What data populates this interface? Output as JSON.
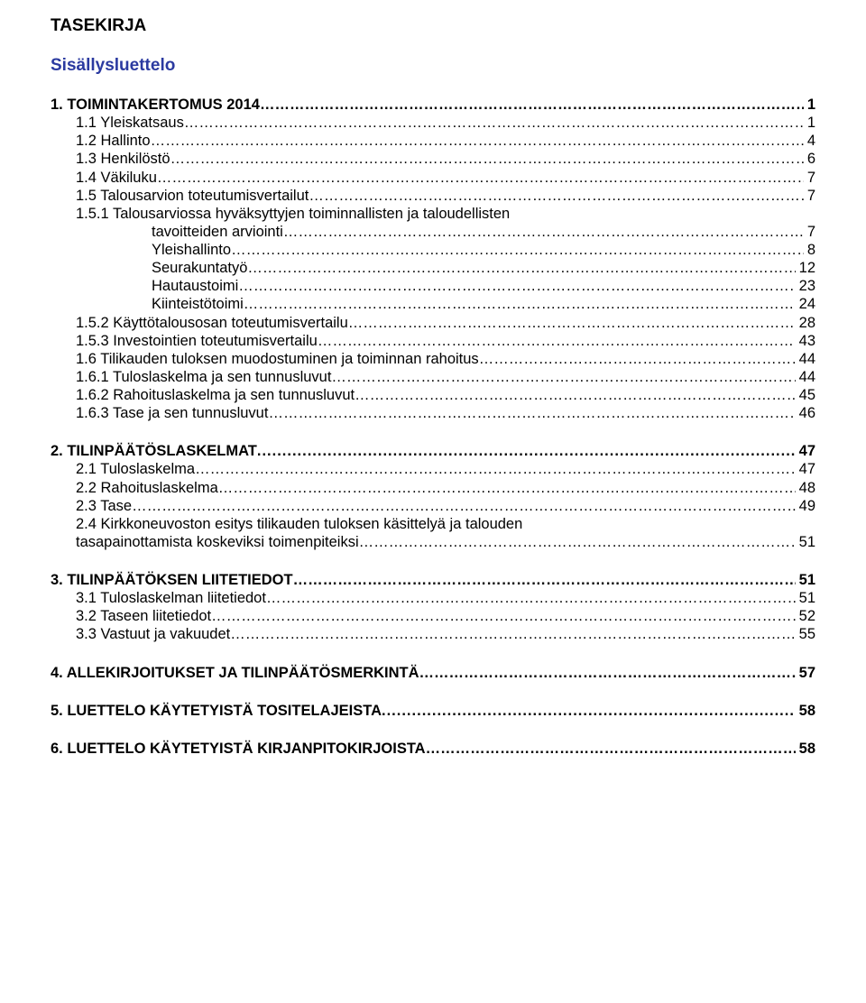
{
  "doc_title": "TASEKIRJA",
  "subtitle": "Sisällysluettelo",
  "sections": [
    {
      "rows": [
        {
          "label": "1.  TOIMINTAKERTOMUS 2014",
          "page": "1",
          "bold": true,
          "indent": 0,
          "leader": "ellipsis"
        },
        {
          "label": "1.1 Yleiskatsaus",
          "page": "1",
          "bold": false,
          "indent": 1,
          "leader": "ellipsis"
        },
        {
          "label": "1.2 Hallinto",
          "page": "4",
          "bold": false,
          "indent": 1,
          "leader": "ellipsis"
        },
        {
          "label": "1.3 Henkilöstö",
          "page": "6",
          "bold": false,
          "indent": 1,
          "leader": "ellipsis"
        },
        {
          "label": "1.4 Väkiluku",
          "page": "7",
          "bold": false,
          "indent": 1,
          "leader": "ellipsis"
        },
        {
          "label": "1.5 Talousarvion toteutumisvertailut",
          "page": "7",
          "bold": false,
          "indent": 1,
          "leader": "ellipsis"
        },
        {
          "label": "1.5.1 Talousarviossa hyväksyttyjen toiminnallisten ja taloudellisten",
          "page": "",
          "bold": false,
          "indent": 1,
          "leader": "none"
        },
        {
          "label": "tavoitteiden arviointi",
          "page": "7",
          "bold": false,
          "indent": 2,
          "leader": "ellipsis"
        },
        {
          "label": "Yleishallinto",
          "page": "8",
          "bold": false,
          "indent": 2,
          "leader": "ellipsis"
        },
        {
          "label": "Seurakuntatyö",
          "page": "12",
          "bold": false,
          "indent": 2,
          "leader": "ellipsis"
        },
        {
          "label": "Hautaustoimi",
          "page": "23",
          "bold": false,
          "indent": 2,
          "leader": "ellipsis"
        },
        {
          "label": "Kiinteistötoimi",
          "page": "24",
          "bold": false,
          "indent": 2,
          "leader": "ellipsis"
        },
        {
          "label": "1.5.2 Käyttötalousosan toteutumisvertailu",
          "page": "28",
          "bold": false,
          "indent": 1,
          "leader": "ellipsis"
        },
        {
          "label": "1.5.3 Investointien toteutumisvertailu",
          "page": "43",
          "bold": false,
          "indent": 1,
          "leader": "ellipsis"
        },
        {
          "label": "1.6 Tilikauden tuloksen muodostuminen ja toiminnan rahoitus",
          "page": "44",
          "bold": false,
          "indent": 1,
          "leader": "ellipsis"
        },
        {
          "label": "1.6.1 Tuloslaskelma ja sen tunnusluvut",
          "page": "44",
          "bold": false,
          "indent": 1,
          "leader": "ellipsis"
        },
        {
          "label": "1.6.2 Rahoituslaskelma ja sen tunnusluvut",
          "page": "45",
          "bold": false,
          "indent": 1,
          "leader": "ellipsis"
        },
        {
          "label": "1.6.3 Tase ja sen tunnusluvut",
          "page": "46",
          "bold": false,
          "indent": 1,
          "leader": "ellipsis"
        }
      ]
    },
    {
      "rows": [
        {
          "label": "2.  TILINPÄÄTÖSLASKELMAT",
          "page": "47",
          "bold": true,
          "indent": 0,
          "leader": "dots"
        },
        {
          "label": "2.1 Tuloslaskelma",
          "page": "47",
          "bold": false,
          "indent": 1,
          "leader": "ellipsis"
        },
        {
          "label": "2.2 Rahoituslaskelma",
          "page": "48",
          "bold": false,
          "indent": 1,
          "leader": "ellipsis"
        },
        {
          "label": "2.3 Tase",
          "page": "49",
          "bold": false,
          "indent": 1,
          "leader": "ellipsis"
        },
        {
          "label": "2.4 Kirkkoneuvoston esitys tilikauden tuloksen käsittelyä ja talouden",
          "page": "",
          "bold": false,
          "indent": 1,
          "leader": "none"
        },
        {
          "label": "      tasapainottamista koskeviksi toimenpiteiksi",
          "page": "51",
          "bold": false,
          "indent": 1,
          "leader": "ellipsis"
        }
      ]
    },
    {
      "rows": [
        {
          "label": "3.  TILINPÄÄTÖKSEN LIITETIEDOT",
          "page": "51",
          "bold": true,
          "indent": 0,
          "leader": "ellipsis"
        },
        {
          "label": "3.1 Tuloslaskelman liitetiedot",
          "page": "51",
          "bold": false,
          "indent": 1,
          "leader": "ellipsis"
        },
        {
          "label": "3.2 Taseen liitetiedot",
          "page": "52",
          "bold": false,
          "indent": 1,
          "leader": "ellipsis"
        },
        {
          "label": "3.3 Vastuut ja vakuudet",
          "page": "55",
          "bold": false,
          "indent": 1,
          "leader": "ellipsis"
        }
      ]
    },
    {
      "rows": [
        {
          "label": "4.  ALLEKIRJOITUKSET JA TILINPÄÄTÖSMERKINTÄ",
          "page": "57",
          "bold": true,
          "indent": 0,
          "leader": "ellipsis"
        }
      ]
    },
    {
      "rows": [
        {
          "label": "5.  LUETTELO KÄYTETYISTÄ TOSITELAJEISTA",
          "page": "58",
          "bold": true,
          "indent": 0,
          "leader": "dots"
        }
      ]
    },
    {
      "rows": [
        {
          "label": "6.  LUETTELO KÄYTETYISTÄ KIRJANPITOKIRJOISTA",
          "page": "58",
          "bold": true,
          "indent": 0,
          "leader": "ellipsis"
        }
      ]
    }
  ]
}
